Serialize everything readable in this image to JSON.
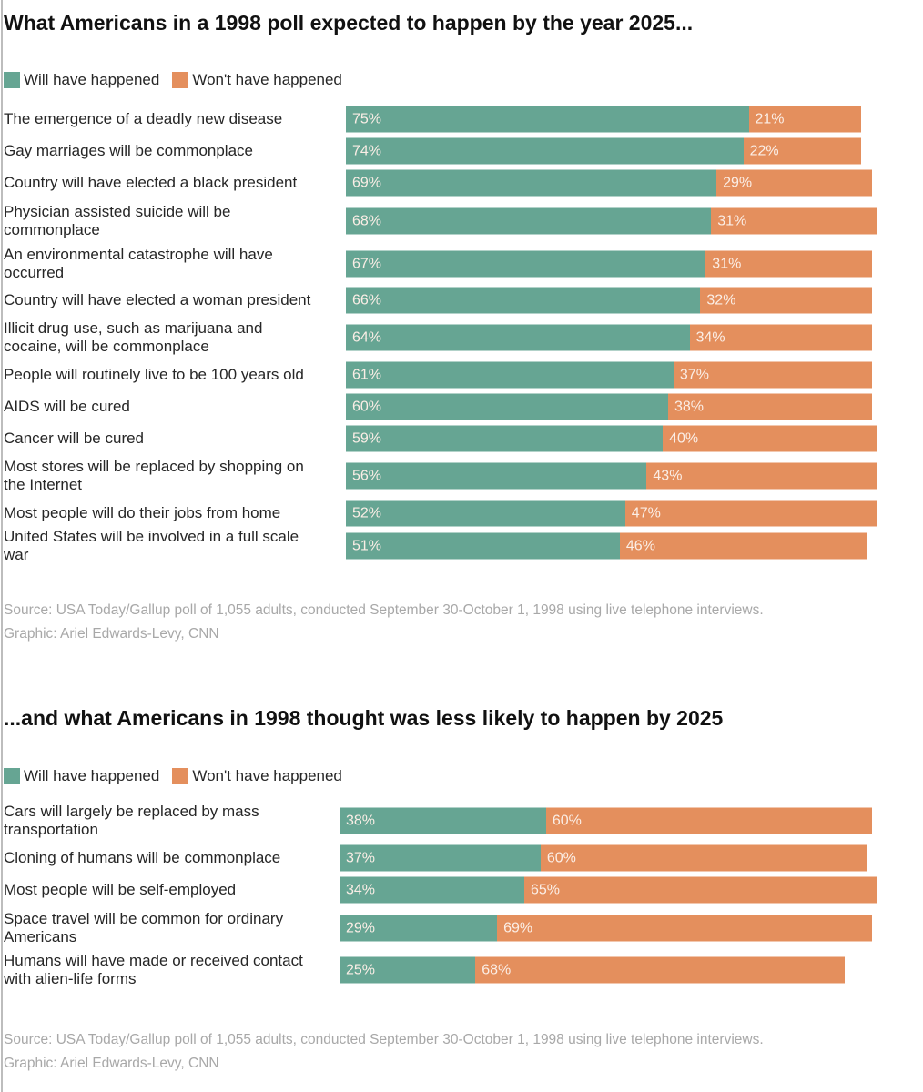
{
  "colors": {
    "will": "#66a593",
    "wont": "#e48f5d"
  },
  "chart_data": [
    {
      "type": "bar",
      "orientation": "horizontal",
      "stacked": true,
      "title": "What Americans in a 1998 poll expected to happen by the year 2025...",
      "legend": [
        "Will have happened",
        "Won't have happened"
      ],
      "legend_placement": "top-left",
      "categories": [
        "The emergence of a deadly new disease",
        "Gay marriages will be commonplace",
        "Country will have elected a black president",
        "Physician assisted suicide will be commonplace",
        "An environmental catastrophe will have occurred",
        "Country will have elected a woman president",
        "Illicit drug use, such as marijuana and cocaine, will be commonplace",
        "People will routinely live to be 100 years old",
        "AIDS will be cured",
        "Cancer will be cured",
        "Most stores will be replaced by shopping on the Internet",
        "Most people will do their jobs from home",
        "United States will be involved in a full scale war"
      ],
      "series": [
        {
          "name": "Will have happened",
          "values": [
            75,
            74,
            69,
            68,
            67,
            66,
            64,
            61,
            60,
            59,
            56,
            52,
            51
          ]
        },
        {
          "name": "Won't have happened",
          "values": [
            21,
            22,
            29,
            31,
            31,
            32,
            34,
            37,
            38,
            40,
            43,
            47,
            46
          ]
        }
      ],
      "source": "Source: USA Today/Gallup poll of 1,055 adults, conducted September 30-October 1, 1998 using live telephone interviews.",
      "credit": "Graphic: Ariel Edwards-Levy, CNN"
    },
    {
      "type": "bar",
      "orientation": "horizontal",
      "stacked": true,
      "title": "...and what Americans in 1998 thought was less likely to happen by 2025",
      "legend": [
        "Will have happened",
        "Won't have happened"
      ],
      "legend_placement": "top-left",
      "categories": [
        "Cars will largely be replaced by mass transportation",
        "Cloning of humans will be commonplace",
        "Most people will be self-employed",
        "Space travel will be common for ordinary Americans",
        "Humans will have made or received contact with alien-life forms"
      ],
      "series": [
        {
          "name": "Will have happened",
          "values": [
            38,
            37,
            34,
            29,
            25
          ]
        },
        {
          "name": "Won't have happened",
          "values": [
            60,
            60,
            65,
            69,
            68
          ]
        }
      ],
      "source": "Source: USA Today/Gallup poll of 1,055 adults, conducted September 30-October 1, 1998 using live telephone interviews.",
      "credit": "Graphic: Ariel Edwards-Levy, CNN"
    }
  ]
}
